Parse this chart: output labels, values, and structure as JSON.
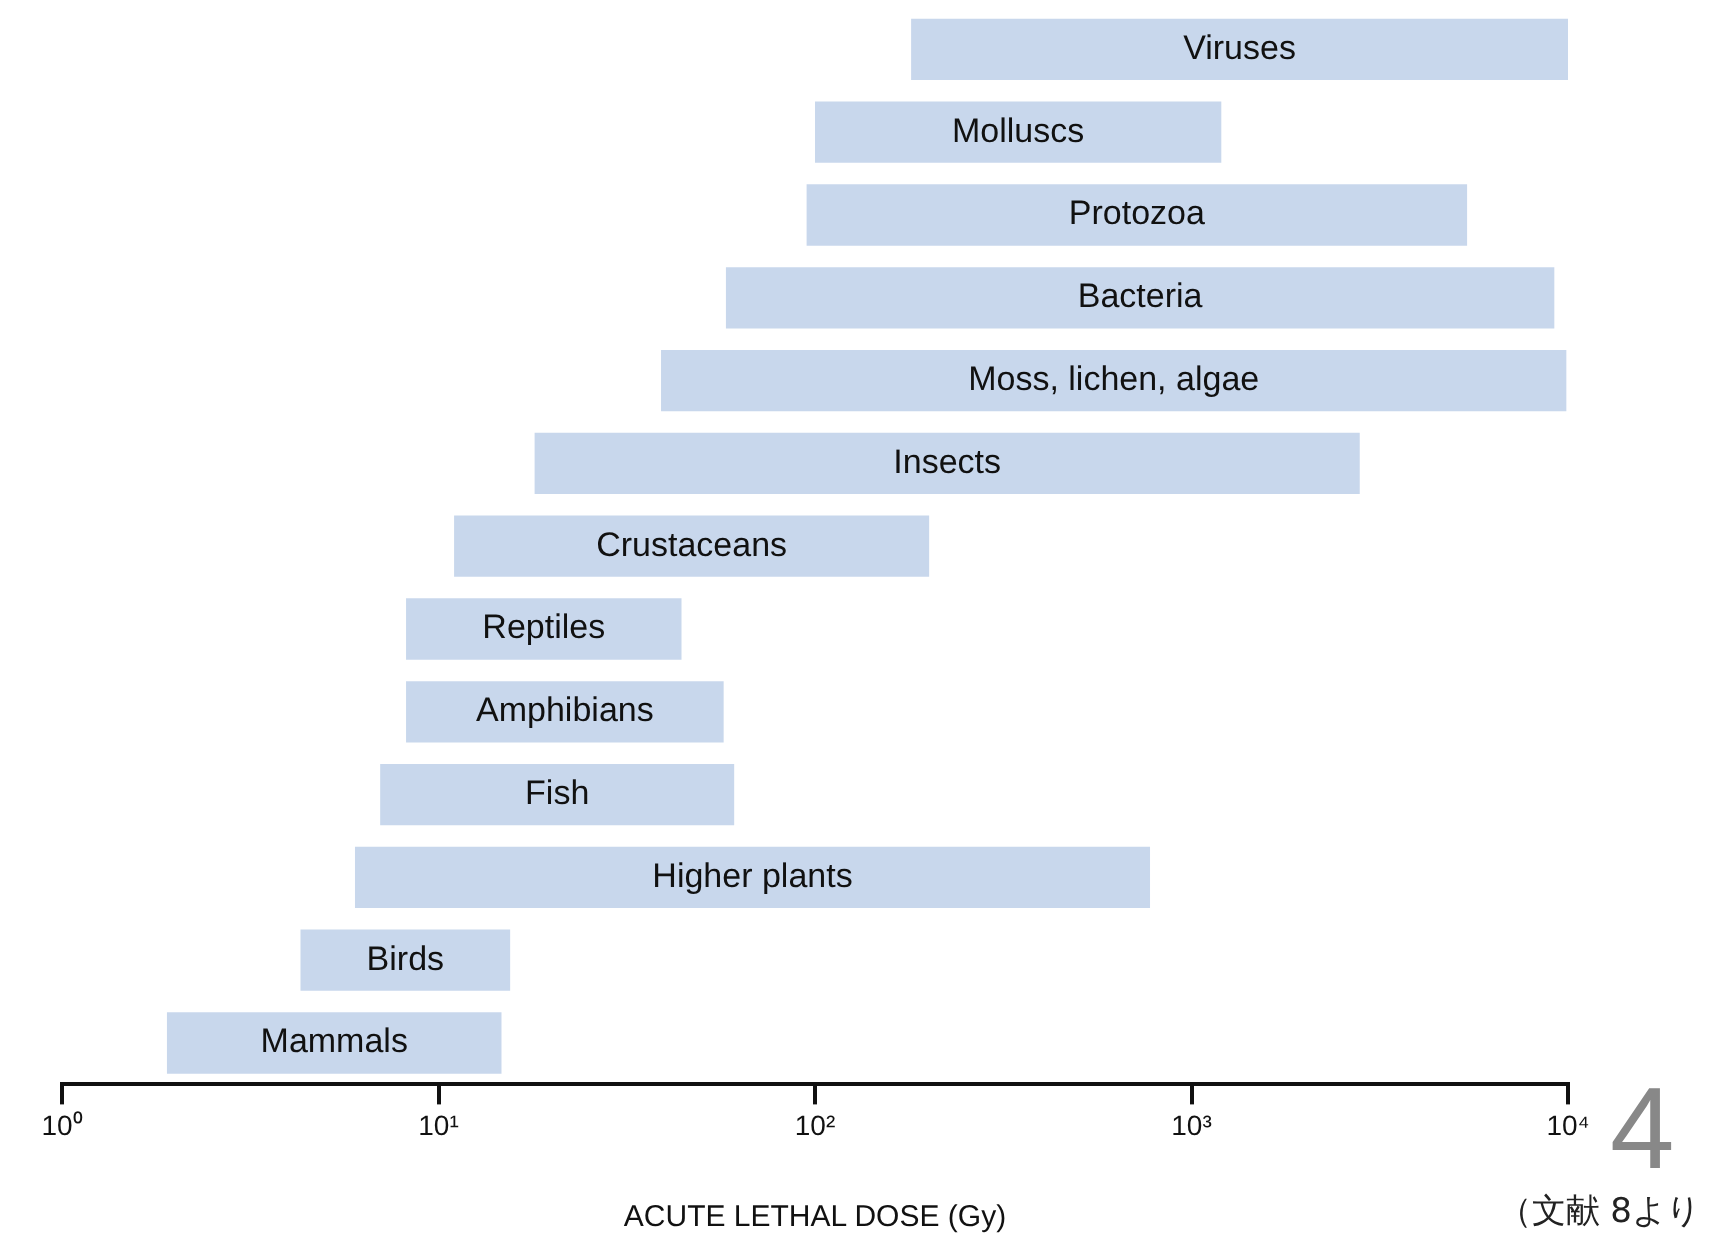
{
  "chart_data": {
    "type": "bar",
    "orientation": "horizontal",
    "log": "x",
    "xlabel": "ACUTE LETHAL DOSE (Gy)",
    "categories": [
      "Viruses",
      "Molluscs",
      "Protozoa",
      "Bacteria",
      "Moss, lichen, algae",
      "Insects",
      "Crustaceans",
      "Reptiles",
      "Amphibians",
      "Fish",
      "Higher plants",
      "Birds",
      "Mammals"
    ],
    "base": [
      180,
      100,
      95,
      58,
      39,
      18,
      11,
      8.2,
      8.2,
      7,
      6,
      4.3,
      1.9
    ],
    "values": [
      9820,
      1100,
      5300,
      9140,
      9860,
      2780,
      190,
      36,
      49,
      54,
      770,
      11.2,
      12.8
    ],
    "color": "#c8d7ec",
    "xlim": [
      1,
      10000
    ],
    "xticks": [
      {
        "value": 1,
        "label": "10⁰"
      },
      {
        "value": 10,
        "label": "10¹"
      },
      {
        "value": 100,
        "label": "10²"
      },
      {
        "value": 1000,
        "label": "10³"
      },
      {
        "value": 10000,
        "label": "10⁴"
      }
    ],
    "annotations": [
      "4",
      "（文献 8より"
    ]
  }
}
